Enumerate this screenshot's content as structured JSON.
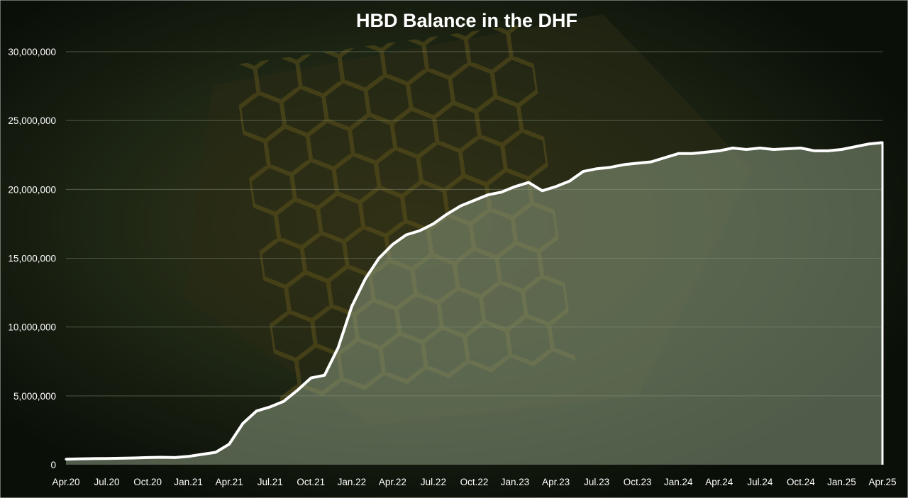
{
  "chart_data": {
    "type": "area",
    "title": "HBD Balance in the DHF",
    "xlabel": "",
    "ylabel": "",
    "ylim": [
      0,
      30000000
    ],
    "y_ticks": [
      {
        "value": 0,
        "label": "0"
      },
      {
        "value": 5000000,
        "label": "5,000,000"
      },
      {
        "value": 10000000,
        "label": "10,000,000"
      },
      {
        "value": 15000000,
        "label": "15,000,000"
      },
      {
        "value": 20000000,
        "label": "20,000,000"
      },
      {
        "value": 25000000,
        "label": "25,000,000"
      },
      {
        "value": 30000000,
        "label": "30,000,000"
      }
    ],
    "x_ticks": [
      "Apr.20",
      "Jul.20",
      "Oct.20",
      "Jan.21",
      "Apr.21",
      "Jul.21",
      "Oct.21",
      "Jan.22",
      "Apr.22",
      "Jul.22",
      "Oct.22",
      "Jan.23",
      "Apr.23",
      "Jul.23",
      "Oct.23",
      "Jan.24",
      "Apr.24",
      "Jul.24",
      "Oct.24",
      "Jan.25",
      "Apr.25"
    ],
    "grid": true,
    "legend": "none",
    "series": [
      {
        "x": [
          "Apr.20",
          "May.20",
          "Jun.20",
          "Jul.20",
          "Aug.20",
          "Sep.20",
          "Oct.20",
          "Nov.20",
          "Dec.20",
          "Jan.21",
          "Feb.21",
          "Mar.21",
          "Apr.21",
          "May.21",
          "Jun.21",
          "Jul.21",
          "Aug.21",
          "Sep.21",
          "Oct.21",
          "Nov.21",
          "Dec.21",
          "Jan.22",
          "Feb.22",
          "Mar.22",
          "Apr.22",
          "May.22",
          "Jun.22",
          "Jul.22",
          "Aug.22",
          "Sep.22",
          "Oct.22",
          "Nov.22",
          "Dec.22",
          "Jan.23",
          "Feb.23",
          "Mar.23",
          "Apr.23",
          "May.23",
          "Jun.23",
          "Jul.23",
          "Aug.23",
          "Sep.23",
          "Oct.23",
          "Nov.23",
          "Dec.23",
          "Jan.24",
          "Feb.24",
          "Mar.24",
          "Apr.24",
          "May.24",
          "Jun.24",
          "Jul.24",
          "Aug.24",
          "Sep.24",
          "Oct.24",
          "Nov.24",
          "Dec.24",
          "Jan.25",
          "Feb.25",
          "Mar.25",
          "Apr.25"
        ],
        "values": [
          400000,
          420000,
          440000,
          450000,
          470000,
          490000,
          520000,
          540000,
          520000,
          600000,
          750000,
          900000,
          1500000,
          3000000,
          3900000,
          4200000,
          4600000,
          5400000,
          6300000,
          6500000,
          8500000,
          11500000,
          13500000,
          15000000,
          16000000,
          16700000,
          17000000,
          17500000,
          18200000,
          18800000,
          19200000,
          19600000,
          19800000,
          20200000,
          20500000,
          19900000,
          20200000,
          20600000,
          21300000,
          21500000,
          21600000,
          21800000,
          21900000,
          22000000,
          22300000,
          22600000,
          22600000,
          22700000,
          22800000,
          23000000,
          22900000,
          23000000,
          22900000,
          22950000,
          23000000,
          22800000,
          22800000,
          22900000,
          23100000,
          23300000,
          23400000
        ]
      }
    ],
    "colors": {
      "line": "#ffffff",
      "area_fill": "#8a9a80",
      "gridline": "#7f8a76",
      "background": "#0d130a"
    }
  }
}
